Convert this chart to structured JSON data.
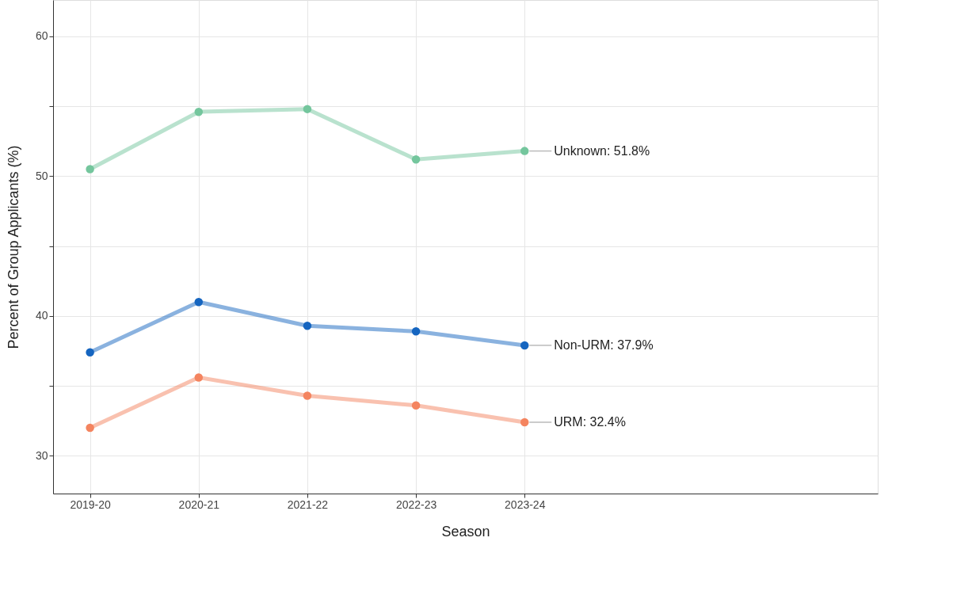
{
  "chart_data": {
    "type": "line",
    "xlabel": "Season",
    "ylabel": "Percent of Group Applicants (%)",
    "categories": [
      "2019-20",
      "2020-21",
      "2021-22",
      "2022-23",
      "2023-24"
    ],
    "series": [
      {
        "color": "#74c69d",
        "values": [
          50.5,
          54.6,
          54.8,
          51.2,
          51.8
        ]
      },
      {
        "color": "#1565c0",
        "values": [
          37.4,
          41.0,
          39.3,
          38.9,
          37.9
        ]
      },
      {
        "color": "#f4845f",
        "values": [
          32.0,
          35.6,
          34.3,
          33.6,
          32.4
        ]
      }
    ],
    "annotations": [
      {
        "text": "Unknown: 51.8%",
        "x": "2023-24",
        "y": 51.8
      },
      {
        "text": "Non-URM: 37.9%",
        "x": "2023-24",
        "y": 37.9
      },
      {
        "text": "URM: 32.4%",
        "x": "2023-24",
        "y": 32.4
      }
    ],
    "ylim": [
      27.3,
      62.6
    ],
    "yticks": [
      30,
      {
        "value": 35,
        "label": null
      },
      40,
      {
        "value": 45,
        "label": null
      },
      50,
      {
        "value": 55,
        "label": null
      },
      60
    ],
    "grid": true,
    "marker": "circle",
    "line_style": "solid"
  }
}
